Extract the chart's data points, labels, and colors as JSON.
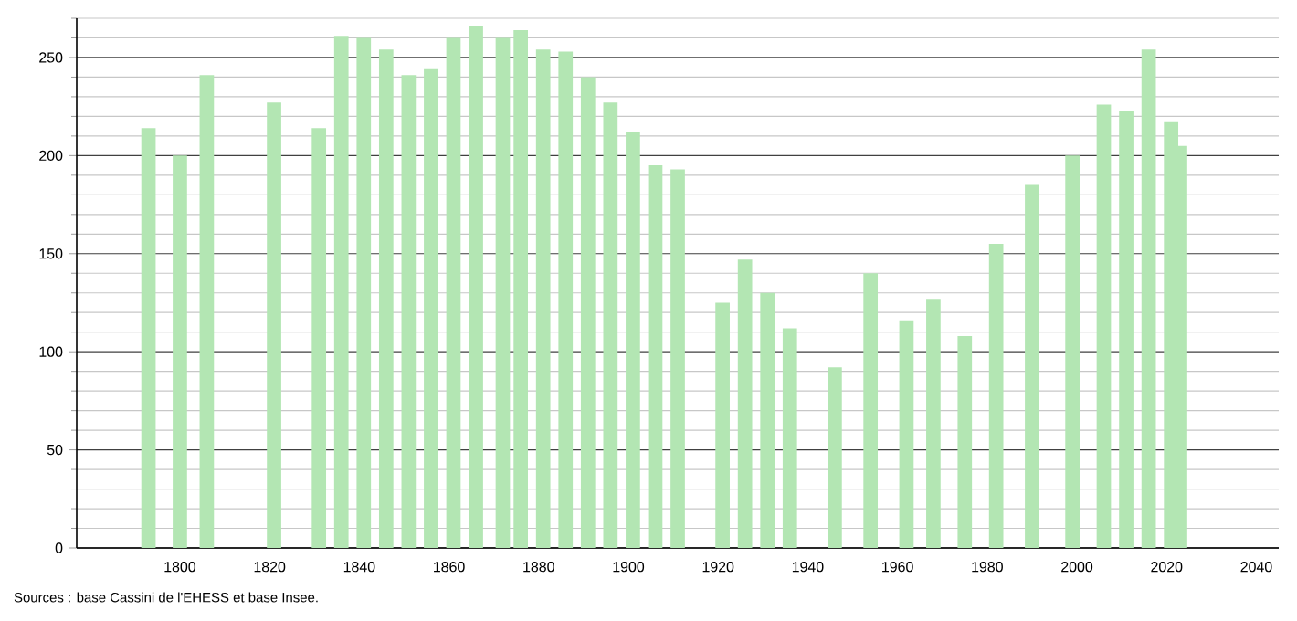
{
  "chart_data": {
    "type": "bar",
    "x": [
      1793,
      1800,
      1806,
      1821,
      1831,
      1836,
      1841,
      1846,
      1851,
      1856,
      1861,
      1866,
      1872,
      1876,
      1881,
      1886,
      1891,
      1896,
      1901,
      1906,
      1911,
      1921,
      1926,
      1931,
      1936,
      1946,
      1954,
      1962,
      1968,
      1975,
      1982,
      1990,
      1999,
      2006,
      2011,
      2016,
      2021,
      2023
    ],
    "values": [
      214,
      200,
      241,
      227,
      214,
      261,
      260,
      254,
      241,
      244,
      260,
      266,
      260,
      264,
      254,
      253,
      240,
      227,
      212,
      195,
      193,
      125,
      147,
      130,
      112,
      92,
      140,
      116,
      127,
      108,
      155,
      185,
      200,
      226,
      223,
      254,
      217,
      205
    ],
    "color": "#b3e6b3",
    "xlim": [
      1777,
      2045
    ],
    "xticks": [
      1800,
      1820,
      1840,
      1860,
      1880,
      1900,
      1920,
      1940,
      1960,
      1980,
      2000,
      2020,
      2040
    ],
    "ylim": [
      0,
      270
    ],
    "yticks": [
      0,
      {
        "value": 10,
        "label": null
      },
      {
        "value": 20,
        "label": null
      },
      {
        "value": 30,
        "label": null
      },
      {
        "value": 40,
        "label": null
      },
      50,
      {
        "value": 60,
        "label": null
      },
      {
        "value": 70,
        "label": null
      },
      {
        "value": 80,
        "label": null
      },
      {
        "value": 90,
        "label": null
      },
      100,
      {
        "value": 110,
        "label": null
      },
      {
        "value": 120,
        "label": null
      },
      {
        "value": 130,
        "label": null
      },
      {
        "value": 140,
        "label": null
      },
      150,
      {
        "value": 160,
        "label": null
      },
      {
        "value": 170,
        "label": null
      },
      {
        "value": 180,
        "label": null
      },
      {
        "value": 190,
        "label": null
      },
      200,
      {
        "value": 210,
        "label": null
      },
      {
        "value": 220,
        "label": null
      },
      {
        "value": 230,
        "label": null
      },
      {
        "value": 240,
        "label": null
      },
      250,
      {
        "value": 260,
        "label": null
      },
      {
        "value": 270,
        "label": null
      }
    ],
    "grid": "y",
    "annotations": [
      "Sources : base Cassini de l'EHESS et base Insee."
    ]
  }
}
